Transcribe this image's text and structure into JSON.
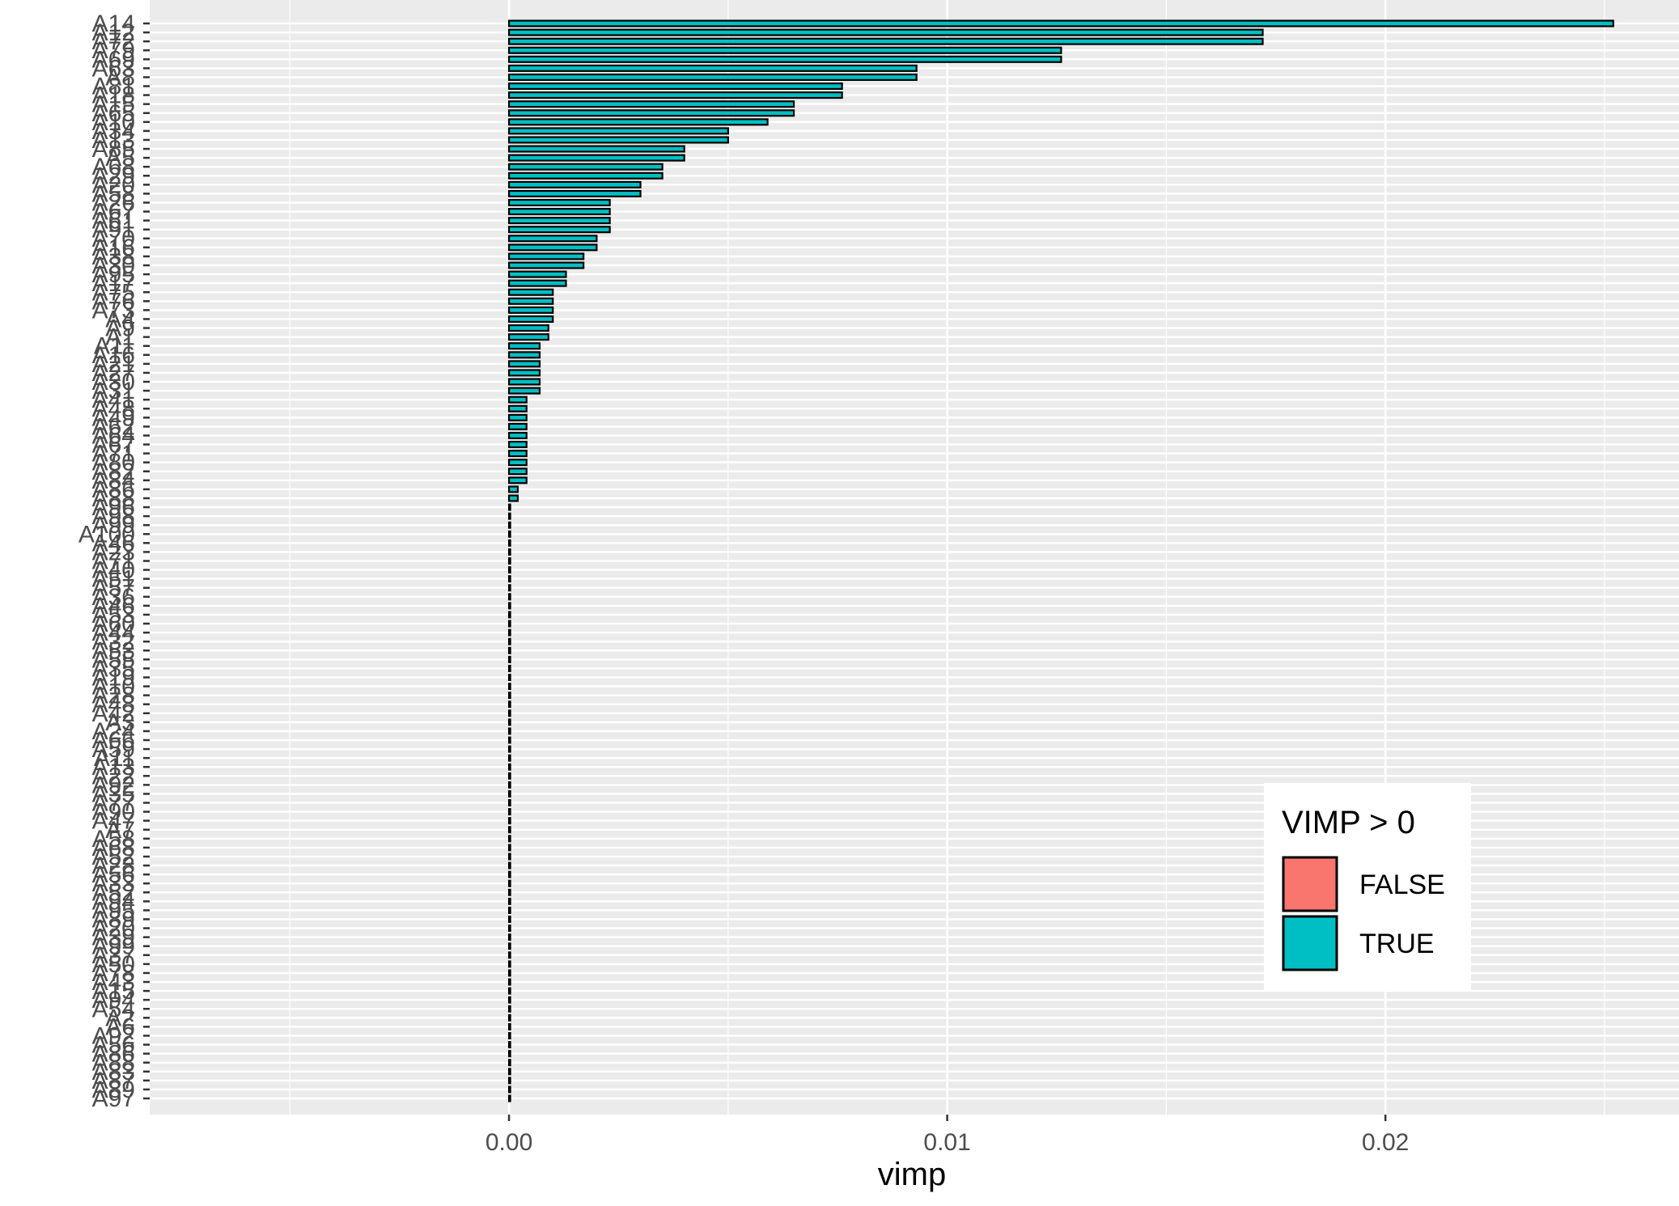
{
  "chart_data": {
    "type": "bar",
    "orientation": "horizontal",
    "xlabel": "vimp",
    "ylabel": "",
    "xlim": [
      -0.0082,
      0.0267
    ],
    "x_ticks": [
      0.0,
      0.01,
      0.02
    ],
    "x_tick_labels": [
      "0.00",
      "0.01",
      "0.02"
    ],
    "grid": true,
    "legend": {
      "title": "VIMP > 0",
      "position": "bottom-right",
      "entries": [
        {
          "label": "FALSE",
          "color": "#F8766D"
        },
        {
          "label": "TRUE",
          "color": "#00BFC4"
        }
      ]
    },
    "colors": {
      "positive": "#00BFC4",
      "negative": "#F8766D",
      "bar_outline": "#000000",
      "panel": "#EBEBEB",
      "gridline": "#FFFFFF"
    },
    "categories": [
      "A14",
      "A12",
      "A72",
      "A79",
      "A69",
      "A63",
      "A8",
      "A81",
      "A18",
      "A15",
      "A65",
      "A10",
      "A34",
      "A13",
      "A85",
      "A5",
      "A68",
      "A29",
      "A20",
      "A58",
      "A26",
      "A67",
      "A61",
      "A91",
      "A70",
      "A16",
      "A38",
      "A30",
      "A95",
      "A17",
      "A75",
      "A76",
      "A73",
      "A4",
      "A9",
      "A1",
      "A11",
      "A16",
      "A21",
      "A27",
      "A30",
      "A31",
      "A41",
      "A48",
      "A49",
      "A62",
      "A64",
      "A67",
      "A71",
      "A80",
      "A82",
      "A84",
      "A86",
      "A88",
      "A96",
      "A98",
      "A99",
      "A100",
      "A46",
      "A23",
      "A71",
      "A40",
      "A51",
      "A57",
      "A36",
      "A46",
      "A53",
      "A60",
      "A44",
      "A32",
      "A53",
      "A55",
      "A35",
      "A19",
      "A10",
      "A28",
      "A48",
      "A42",
      "A3",
      "A24",
      "A66",
      "A59",
      "A11",
      "A13",
      "A22",
      "A92",
      "A35",
      "A77",
      "A90",
      "A47",
      "A7",
      "A58",
      "A68",
      "A52",
      "A28",
      "A56",
      "A33",
      "A52",
      "A94",
      "A95",
      "A89",
      "A20",
      "A39",
      "A99",
      "A37",
      "A50",
      "A78",
      "A43",
      "A15",
      "A94",
      "A54",
      "A2",
      "A6",
      "A92",
      "A56",
      "A86",
      "A88",
      "A83",
      "A87",
      "A89",
      "A97"
    ],
    "values": [
      0.0252,
      0.0172,
      0.0172,
      0.0126,
      0.0126,
      0.0093,
      0.0093,
      0.0076,
      0.0076,
      0.0065,
      0.0065,
      0.0059,
      0.005,
      0.005,
      0.004,
      0.004,
      0.0035,
      0.0035,
      0.003,
      0.003,
      0.0023,
      0.0023,
      0.0023,
      0.0023,
      0.002,
      0.002,
      0.0017,
      0.0017,
      0.0013,
      0.0013,
      0.001,
      0.001,
      0.001,
      0.001,
      0.0009,
      0.0009,
      0.0007,
      0.0007,
      0.0007,
      0.0007,
      0.0007,
      0.0007,
      0.0004,
      0.0004,
      0.0004,
      0.0004,
      0.0004,
      0.0004,
      0.0004,
      0.0004,
      0.0004,
      0.0004,
      0.0002,
      0.0002,
      0.0,
      0.0,
      0.0,
      0.0,
      0.0,
      0.0,
      0.0,
      0.0,
      0.0,
      0.0,
      0.0,
      0.0,
      0.0,
      0.0,
      0.0,
      0.0,
      0.0,
      0.0,
      0.0,
      0.0,
      0.0,
      0.0,
      0.0,
      0.0,
      0.0,
      0.0,
      0.0,
      0.0,
      0.0,
      0.0,
      0.0,
      0.0,
      0.0,
      0.0,
      0.0,
      0.0,
      0.0,
      0.0,
      0.0,
      0.0,
      0.0,
      0.0,
      0.0,
      0.0,
      0.0,
      0.0,
      0.0,
      0.0,
      0.0,
      0.0,
      0.0,
      0.0,
      0.0,
      0.0,
      0.0,
      0.0,
      0.0,
      0.0,
      0.0,
      0.0,
      0.0,
      0.0,
      0.0,
      0.0,
      0.0,
      0.0,
      0.0
    ]
  }
}
